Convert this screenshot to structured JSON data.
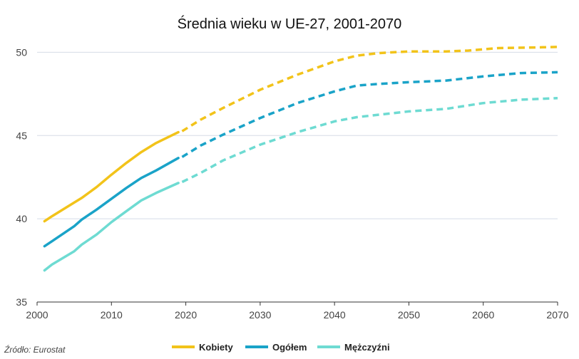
{
  "chart_data": {
    "type": "line",
    "title": "Średnia wieku w UE-27, 2001-2070",
    "xlim": [
      2000,
      2070
    ],
    "ylim": [
      35,
      51
    ],
    "x_ticks": [
      "2000",
      "2010",
      "2020",
      "2030",
      "2040",
      "2050",
      "2060",
      "2070"
    ],
    "y_ticks": [
      "35",
      "40",
      "45",
      "50"
    ],
    "grid": "horizontal",
    "legend_position": "bottom",
    "observed_until": 2019,
    "projection_from": 2019,
    "series": [
      {
        "name": "Kobiety",
        "color": "#f2c31a",
        "points": [
          [
            2001,
            39.85
          ],
          [
            2002,
            40.15
          ],
          [
            2004,
            40.7
          ],
          [
            2006,
            41.25
          ],
          [
            2008,
            41.9
          ],
          [
            2010,
            42.65
          ],
          [
            2012,
            43.35
          ],
          [
            2014,
            44.0
          ],
          [
            2016,
            44.55
          ],
          [
            2019,
            45.2
          ],
          [
            2022,
            45.95
          ],
          [
            2025,
            46.65
          ],
          [
            2030,
            47.75
          ],
          [
            2035,
            48.65
          ],
          [
            2040,
            49.45
          ],
          [
            2043,
            49.8
          ],
          [
            2046,
            49.95
          ],
          [
            2050,
            50.05
          ],
          [
            2055,
            50.05
          ],
          [
            2058,
            50.1
          ],
          [
            2062,
            50.25
          ],
          [
            2066,
            50.28
          ],
          [
            2070,
            50.32
          ]
        ]
      },
      {
        "name": "Ogółem",
        "color": "#1aa3c8",
        "points": [
          [
            2001,
            38.35
          ],
          [
            2002,
            38.65
          ],
          [
            2005,
            39.55
          ],
          [
            2006,
            39.95
          ],
          [
            2008,
            40.55
          ],
          [
            2010,
            41.2
          ],
          [
            2012,
            41.85
          ],
          [
            2014,
            42.45
          ],
          [
            2016,
            42.9
          ],
          [
            2019,
            43.65
          ],
          [
            2022,
            44.4
          ],
          [
            2025,
            45.05
          ],
          [
            2030,
            46.05
          ],
          [
            2035,
            46.95
          ],
          [
            2040,
            47.65
          ],
          [
            2043,
            48.0
          ],
          [
            2046,
            48.1
          ],
          [
            2050,
            48.2
          ],
          [
            2055,
            48.3
          ],
          [
            2060,
            48.55
          ],
          [
            2065,
            48.75
          ],
          [
            2070,
            48.8
          ]
        ]
      },
      {
        "name": "Mężczyźni",
        "color": "#6edbd2",
        "points": [
          [
            2001,
            36.9
          ],
          [
            2002,
            37.25
          ],
          [
            2005,
            38.05
          ],
          [
            2006,
            38.45
          ],
          [
            2008,
            39.05
          ],
          [
            2010,
            39.8
          ],
          [
            2012,
            40.45
          ],
          [
            2014,
            41.1
          ],
          [
            2016,
            41.55
          ],
          [
            2019,
            42.15
          ],
          [
            2022,
            42.75
          ],
          [
            2025,
            43.5
          ],
          [
            2030,
            44.45
          ],
          [
            2035,
            45.2
          ],
          [
            2040,
            45.85
          ],
          [
            2043,
            46.1
          ],
          [
            2046,
            46.25
          ],
          [
            2050,
            46.45
          ],
          [
            2055,
            46.6
          ],
          [
            2060,
            46.95
          ],
          [
            2065,
            47.15
          ],
          [
            2070,
            47.25
          ]
        ]
      }
    ],
    "source": "Źródło: Eurostat"
  }
}
